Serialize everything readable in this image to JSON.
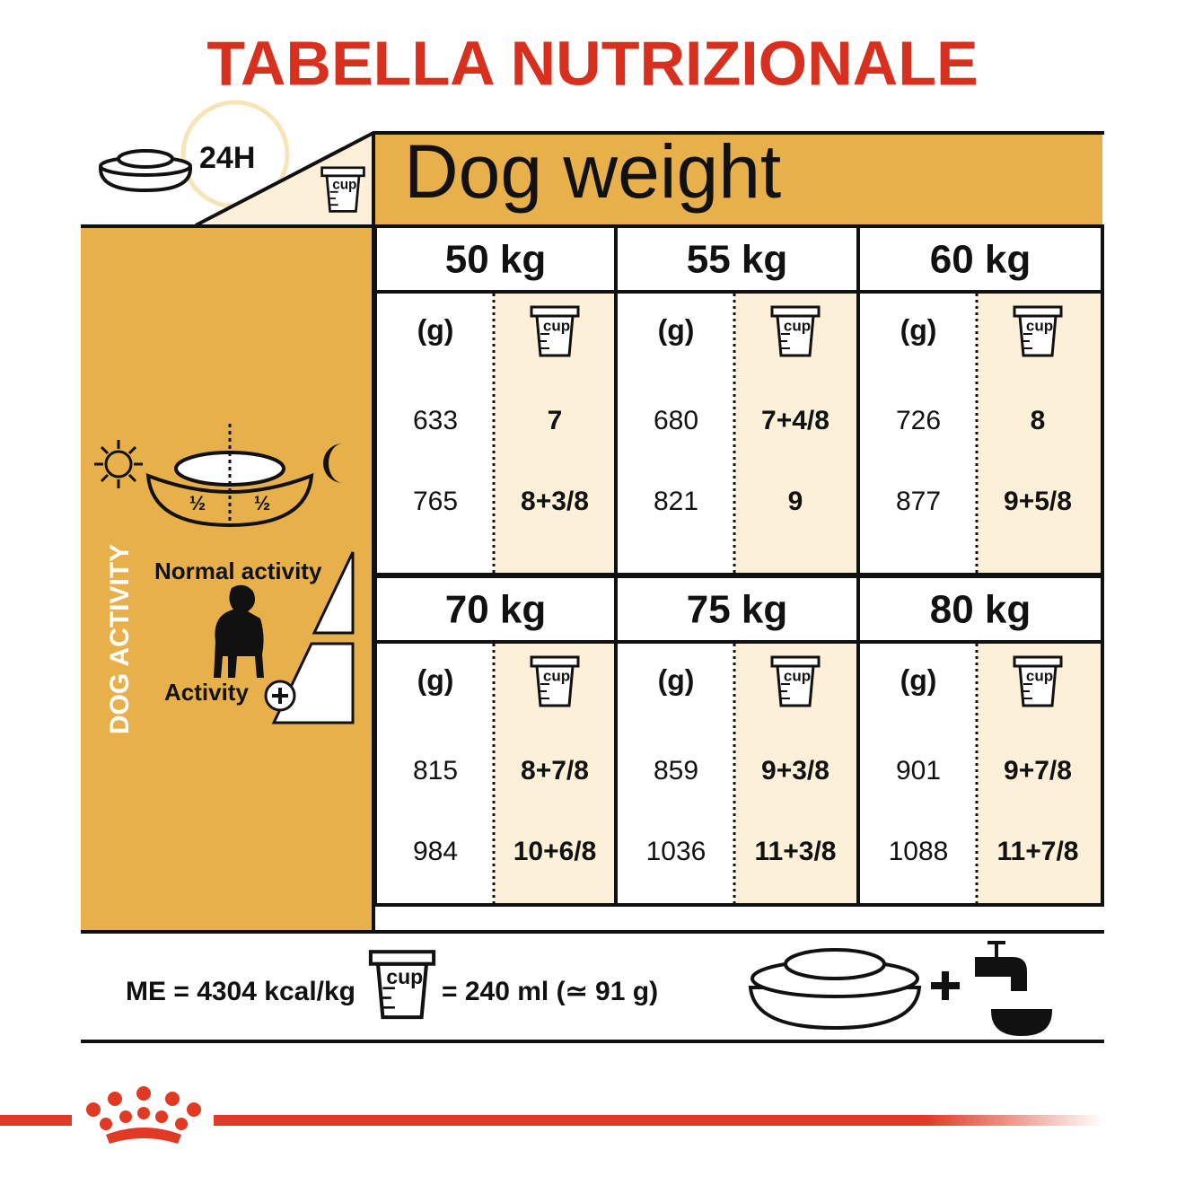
{
  "title": "TABELLA NUTRIZIONALE",
  "header": {
    "duration": "24H",
    "cup_label": "cup",
    "dog_weight": "Dog weight"
  },
  "activity_panel": {
    "vertical_label": "DOG ACTIVITY",
    "half": "½",
    "normal": "Normal activity",
    "high": "Activity"
  },
  "grams_label": "(g)",
  "weights": [
    {
      "weight": "50 kg",
      "rows": [
        [
          "633",
          "7"
        ],
        [
          "765",
          "8+3/8"
        ]
      ]
    },
    {
      "weight": "55 kg",
      "rows": [
        [
          "680",
          "7+4/8"
        ],
        [
          "821",
          "9"
        ]
      ]
    },
    {
      "weight": "60 kg",
      "rows": [
        [
          "726",
          "8"
        ],
        [
          "877",
          "9+5/8"
        ]
      ]
    },
    {
      "weight": "70 kg",
      "rows": [
        [
          "815",
          "8+7/8"
        ],
        [
          "984",
          "10+6/8"
        ]
      ]
    },
    {
      "weight": "75 kg",
      "rows": [
        [
          "859",
          "9+3/8"
        ],
        [
          "1036",
          "11+3/8"
        ]
      ]
    },
    {
      "weight": "80 kg",
      "rows": [
        [
          "901",
          "9+7/8"
        ],
        [
          "1088",
          "11+7/8"
        ]
      ]
    }
  ],
  "footer": {
    "energy": "ME = 4304 kcal/kg",
    "cup_equivalent": "= 240 ml (≃ 91 g)"
  }
}
